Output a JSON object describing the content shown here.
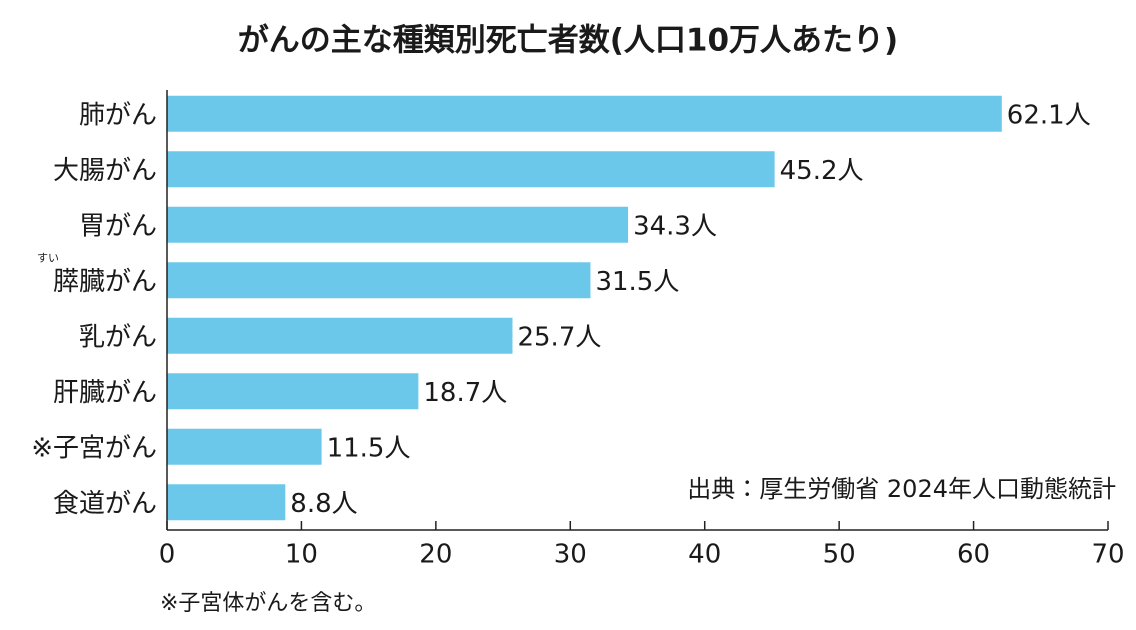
{
  "chart_data": {
    "type": "bar",
    "orientation": "horizontal",
    "title": "がんの主な種類別死亡者数(人口10万人あたり)",
    "categories": [
      "肺がん",
      "大腸がん",
      "胃がん",
      "膵臓がん",
      "乳がん",
      "肝臓がん",
      "※子宮がん",
      "食道がん"
    ],
    "category_readings": [
      null,
      null,
      null,
      "すい",
      null,
      null,
      null,
      null
    ],
    "values": [
      62.1,
      45.2,
      34.3,
      31.5,
      25.7,
      18.7,
      11.5,
      8.8
    ],
    "value_labels": [
      "62.1人",
      "45.2人",
      "34.3人",
      "31.5人",
      "25.7人",
      "18.7人",
      "11.5人",
      "8.8人"
    ],
    "color": "#6cc8eb",
    "xlim": [
      0,
      70
    ],
    "xticks": [
      0,
      10,
      20,
      30,
      40,
      50,
      60,
      70
    ],
    "source": "出典：厚生労働省 2024年人口動態統計",
    "footnote": "※子宮体がんを含む。"
  }
}
